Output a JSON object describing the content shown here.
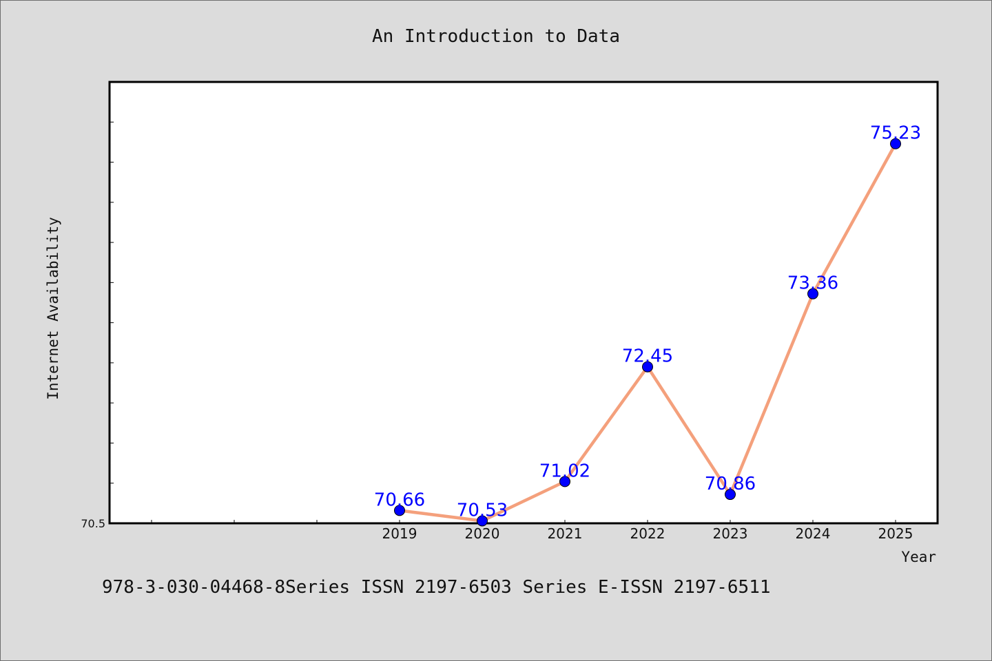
{
  "chart_data": {
    "type": "line",
    "title": "An Introduction to Data",
    "xlabel": "Year",
    "ylabel": "Internet Availability",
    "categories": [
      "2019",
      "2020",
      "2021",
      "2022",
      "2023",
      "2024",
      "2025"
    ],
    "series": [
      {
        "values": [
          70.66,
          70.53,
          71.02,
          72.45,
          70.86,
          73.36,
          75.23
        ]
      }
    ],
    "data_labels": [
      "70.66",
      "70.53",
      "71.02",
      "72.45",
      "70.86",
      "73.36",
      "75.23"
    ],
    "y_tick_labels": [
      "70.5"
    ],
    "ylim": [
      70.5,
      76.0
    ],
    "grid": false,
    "line_color": "#f4a07c",
    "marker_color": "#0000ff",
    "label_color": "#0000ff"
  },
  "footer": {
    "text": "978-3-030-04468-8Series ISSN 2197-6503 Series E-ISSN 2197-6511"
  }
}
